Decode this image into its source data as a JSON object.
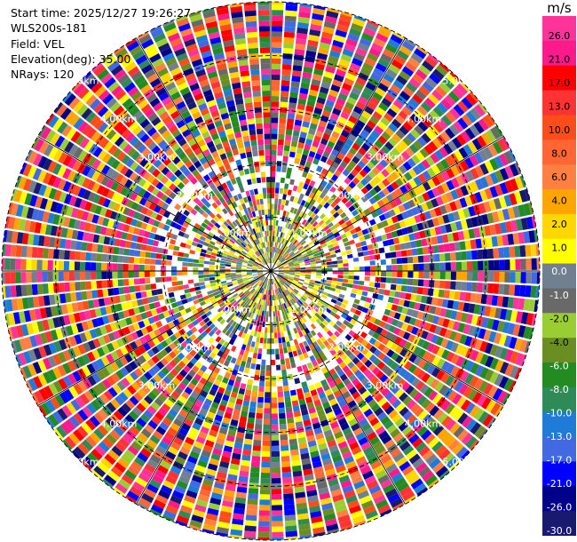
{
  "info": {
    "start_time": "Start time: 2025/12/27 19:26:27",
    "station": "WLS200s-181",
    "field": "Field: VEL",
    "elevation": "Elevation(deg): 35.00",
    "nrays": "NRays: 120"
  },
  "colorbar": {
    "unit": "m/s",
    "labels": [
      "26.0",
      "21.0",
      "17.0",
      "13.0",
      "10.0",
      "8.0",
      "6.0",
      "4.0",
      "2.0",
      "1.0",
      "0.0",
      "-1.0",
      "-2.0",
      "-4.0",
      "-6.0",
      "-8.0",
      "-10.0",
      "-13.0",
      "-17.0",
      "-21.0",
      "-26.0",
      "-30.0"
    ],
    "colors": [
      "#ff3399",
      "#ff1a8c",
      "#ff0000",
      "#ff3333",
      "#ff4d1a",
      "#ff6633",
      "#ff8040",
      "#ffa500",
      "#ffd700",
      "#ffff00",
      "#708090",
      "#696969",
      "#9acd32",
      "#6b8e23",
      "#228b22",
      "#2e8b57",
      "#1e7bd8",
      "#4169e1",
      "#0000ff",
      "#00008b",
      "#191970"
    ]
  },
  "chart_data": {
    "type": "ppi",
    "field": "VEL",
    "elevation_deg": 35.0,
    "nrays": 120,
    "range_unit": "km",
    "range_rings_km": [
      1.0,
      2.0,
      3.0,
      4.0,
      5.0
    ],
    "ring_labels": {
      "1": "1.00km",
      "2": "2.00km",
      "3": "3.00km",
      "4": "4.00km",
      "5": "5.00km"
    },
    "max_range_km": 5.0,
    "velocity_range": [
      -30.0,
      30.0
    ]
  }
}
